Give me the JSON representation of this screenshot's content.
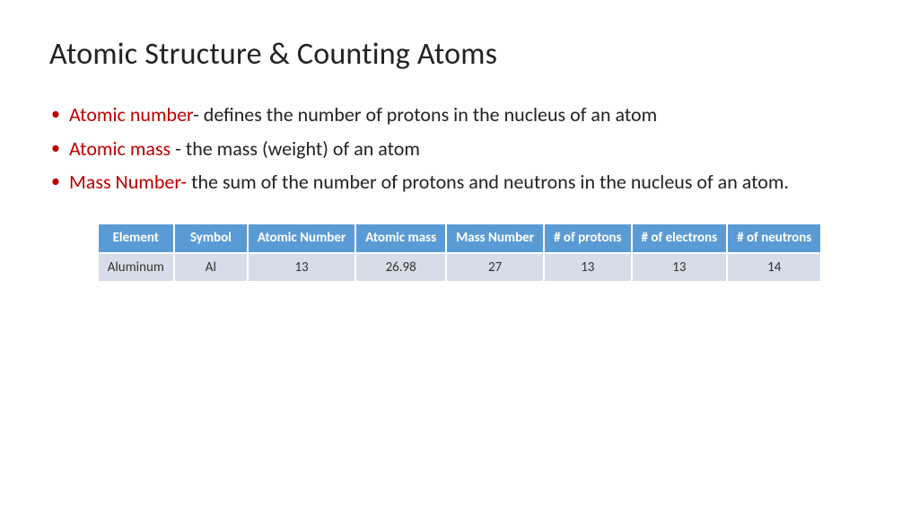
{
  "title": "Atomic Structure & Counting Atoms",
  "bullets": [
    {
      "term": "Atomic number",
      "def": "- defines the number of protons in the nucleus of an atom"
    },
    {
      "term": "Atomic mass ",
      "def": "- the mass (weight) of an atom"
    },
    {
      "term": "Mass Number- ",
      "def": "the sum of the number of protons and neutrons in the nucleus of an atom."
    }
  ],
  "table": {
    "type": "table",
    "header_bg": "#5b9bd5",
    "header_fg": "#ffffff",
    "row_bg": "#d6dde8",
    "row_fg": "#333333",
    "border_spacing": 2,
    "header_fontsize": 15,
    "cell_fontsize": 15,
    "columns": [
      "Element",
      "Symbol",
      "Atomic Number",
      "Atomic mass",
      "Mass Number",
      "# of protons",
      "# of electrons",
      "# of neutrons"
    ],
    "rows": [
      [
        "Aluminum",
        "Al",
        "13",
        "26.98",
        "27",
        "13",
        "13",
        "14"
      ]
    ]
  },
  "colors": {
    "accent_red": "#c00000",
    "text": "#222222",
    "background": "#ffffff"
  }
}
